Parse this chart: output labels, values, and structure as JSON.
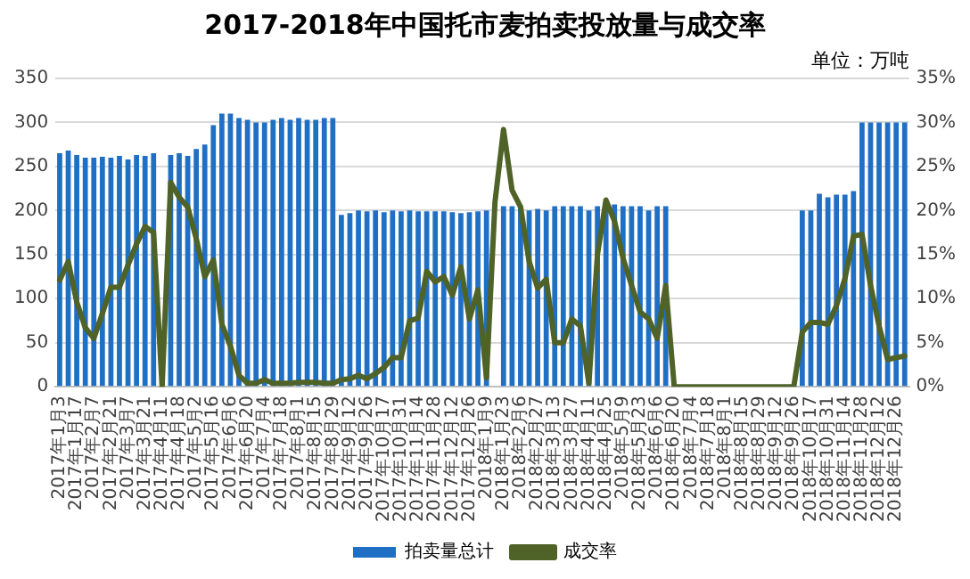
{
  "chart_data": {
    "type": "bar",
    "title": "2017-2018年中国托市麦拍卖投放量与成交率",
    "annotations": [
      "单位：万吨"
    ],
    "categories": [
      "2017年1月3",
      null,
      "2017年1月17",
      null,
      "2017年2月7",
      null,
      "2017年2月21",
      null,
      "2017年3月7",
      null,
      "2017年3月21",
      null,
      "2017年4月11",
      null,
      "2017年4月18",
      null,
      "2017年5月2",
      null,
      "2017年5月16",
      null,
      "2017年6月6",
      null,
      "2017年6月20",
      null,
      "2017年7月4",
      null,
      "2017年7月18",
      null,
      "2017年8月1",
      null,
      "2017年8月15",
      null,
      "2017年8月29",
      null,
      "2017年9月12",
      null,
      "2017年9月26",
      null,
      "2017年10月17",
      null,
      "2017年10月31",
      null,
      "2017年11月14",
      null,
      "2017年11月28",
      null,
      "2017年12月12",
      null,
      "2017年12月26",
      null,
      "2018年1月9",
      null,
      "2018年1月23",
      null,
      "2018年2月6",
      null,
      "2018年2月27",
      null,
      "2018年3月13",
      null,
      "2018年3月27",
      null,
      "2018年4月11",
      null,
      "2018年4月25",
      null,
      "2018年5月9",
      null,
      "2018年5月23",
      null,
      "2018年6月6",
      null,
      "2018年6月20",
      null,
      "2018年7月4",
      null,
      "2018年7月18",
      null,
      "2018年8月1",
      null,
      "2018年8月15",
      null,
      "2018年8月29",
      null,
      "2018年9月12",
      null,
      "2018年9月26",
      null,
      "2018年10月17",
      null,
      "2018年10月31",
      null,
      "2018年11月14",
      null,
      "2018年11月28",
      null,
      "2018年12月12",
      null,
      "2018年12月26",
      null
    ],
    "series": [
      {
        "name": "拍卖量总计",
        "color": "#1f6fc5",
        "values": [
          265,
          268,
          263,
          260,
          260,
          261,
          260,
          262,
          258,
          263,
          262,
          265,
          null,
          263,
          265,
          262,
          270,
          275,
          297,
          310,
          310,
          305,
          303,
          300,
          300,
          303,
          305,
          303,
          305,
          303,
          303,
          305,
          305,
          195,
          197,
          200,
          199,
          200,
          198,
          200,
          199,
          200,
          199,
          199,
          199,
          199,
          198,
          197,
          198,
          199,
          200,
          null,
          205,
          205,
          205,
          200,
          202,
          200,
          205,
          205,
          205,
          205,
          200,
          205,
          207,
          207,
          205,
          205,
          205,
          200,
          205,
          205,
          null,
          null,
          null,
          null,
          null,
          null,
          null,
          null,
          null,
          null,
          null,
          null,
          null,
          null,
          null,
          200,
          200,
          219,
          215,
          218,
          218,
          222,
          300,
          300,
          300,
          300,
          300,
          300
        ]
      },
      {
        "name": "成交率",
        "type": "line",
        "axis": "y2",
        "color": "#4f6228",
        "values": [
          12.1,
          14.2,
          9.6,
          6.7,
          5.5,
          8.3,
          11.3,
          11.3,
          13.8,
          16.2,
          18.2,
          17.5,
          0,
          23.2,
          21.5,
          20.4,
          16.8,
          12.5,
          14.4,
          7.1,
          4.6,
          1.3,
          0.4,
          0.4,
          0.8,
          0.4,
          0.4,
          0.4,
          0.5,
          0.5,
          0.5,
          0.4,
          0.4,
          0.8,
          0.9,
          1.3,
          0.9,
          1.5,
          2.2,
          3.3,
          3.3,
          7.5,
          7.8,
          13.1,
          11.9,
          12.5,
          10.4,
          13.6,
          7.7,
          11.0,
          1.0,
          21.0,
          29.2,
          22.3,
          20.4,
          14.2,
          11.2,
          12.2,
          5,
          5,
          7.7,
          6.9,
          0.4,
          15,
          21.2,
          18.8,
          14.6,
          11.5,
          8.5,
          7.7,
          5.5,
          11.5,
          0,
          0,
          0,
          0,
          0,
          0,
          0,
          0,
          0,
          0,
          0,
          0,
          0,
          0,
          0,
          6.2,
          7.3,
          7.3,
          7.1,
          9.2,
          12.3,
          17.1,
          17.3,
          11.5,
          6.9,
          3.1,
          3.3,
          3.5
        ]
      }
    ],
    "ylim": [
      0,
      350
    ],
    "yticks": [
      0,
      50,
      100,
      150,
      200,
      250,
      300,
      350
    ],
    "y2lim": [
      0,
      35
    ],
    "y2ticks": [
      {
        "value": 0,
        "label": "0%"
      },
      {
        "value": 5,
        "label": "5%"
      },
      {
        "value": 10,
        "label": "10%"
      },
      {
        "value": 15,
        "label": "15%"
      },
      {
        "value": 20,
        "label": "20%"
      },
      {
        "value": 25,
        "label": "25%"
      },
      {
        "value": 30,
        "label": "30%"
      },
      {
        "value": 35,
        "label": "35%"
      }
    ],
    "grid": "y",
    "legend": "bottom",
    "marker": "none",
    "line_style": "solid"
  }
}
